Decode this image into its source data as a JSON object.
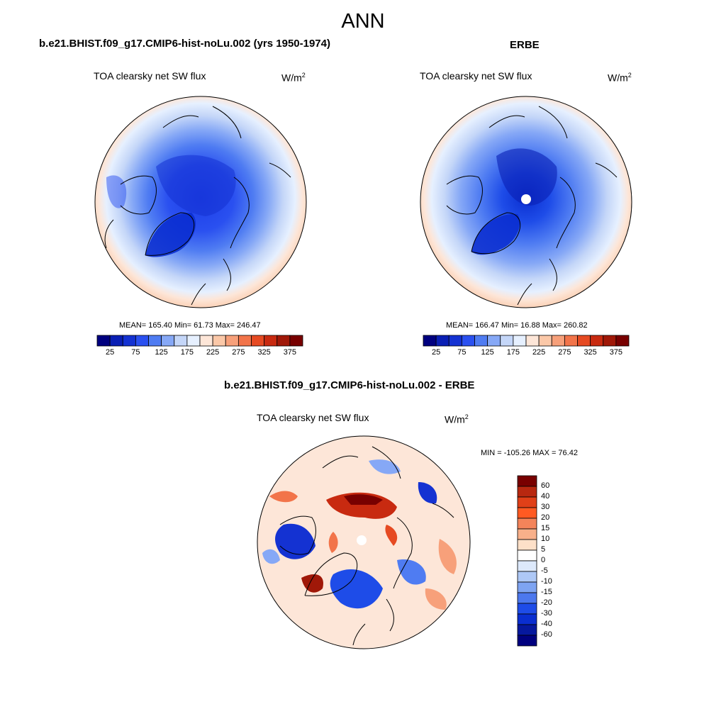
{
  "title": "ANN",
  "panels": [
    {
      "title": "b.e21.BHIST.f09_g17.CMIP6-hist-noLu.002 (yrs 1950-1974)",
      "variable": "TOA clearsky net SW flux",
      "units": "W/m",
      "units_sup": "2",
      "stats": "MEAN= 165.40  Min=  61.73  Max= 246.47"
    },
    {
      "title": "ERBE",
      "variable": "TOA clearsky net SW flux",
      "units": "W/m",
      "units_sup": "2",
      "stats": "MEAN= 166.47  Min=  16.88  Max= 260.82"
    },
    {
      "title": "b.e21.BHIST.f09_g17.CMIP6-hist-noLu.002 - ERBE",
      "variable": "TOA clearsky net SW flux",
      "units": "W/m",
      "units_sup": "2",
      "stats": "MIN = -105.26 MAX =  76.42"
    }
  ],
  "colorbar_abs": {
    "ticks": [
      "25",
      "75",
      "125",
      "175",
      "225",
      "275",
      "325",
      "375"
    ],
    "colors": [
      "#00007f",
      "#0a1fb4",
      "#1432d2",
      "#2a50f0",
      "#4f7cf2",
      "#86a8f6",
      "#c4d6f8",
      "#e6f0ff",
      "#fde6d8",
      "#fbc8a8",
      "#f7a07a",
      "#f2744a",
      "#e64a22",
      "#c82a10",
      "#a01808",
      "#780000"
    ]
  },
  "colorbar_diff": {
    "labels": [
      "60",
      "40",
      "30",
      "20",
      "15",
      "10",
      "5",
      "0",
      "-5",
      "-10",
      "-15",
      "-20",
      "-30",
      "-40",
      "-60"
    ],
    "colors": [
      "#780000",
      "#b82810",
      "#e04018",
      "#ff5a22",
      "#f4845a",
      "#f8b08a",
      "#fde0c8",
      "#ffffff",
      "#dde9fb",
      "#aec8f6",
      "#7ea4f2",
      "#4c78ee",
      "#1e4ce8",
      "#0a2ed0",
      "#06189e",
      "#00007f"
    ]
  }
}
